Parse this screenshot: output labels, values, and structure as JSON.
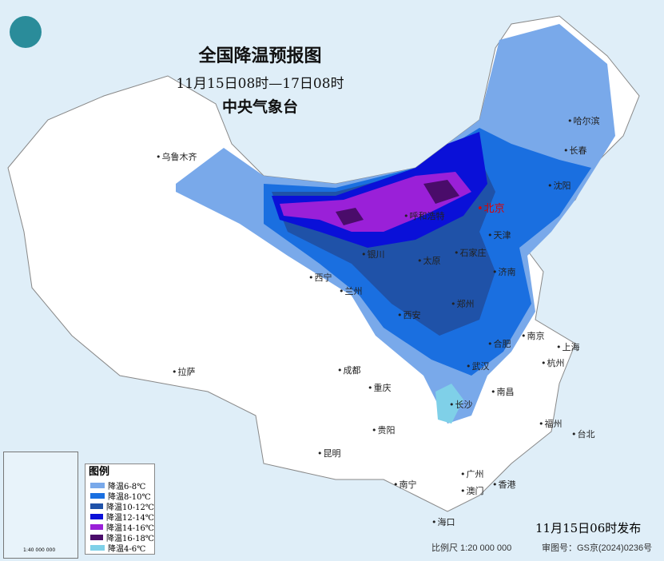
{
  "header": {
    "title": "全国降温预报图",
    "period": "11月15日08时—17日08时",
    "issuer": "中央气象台"
  },
  "legend": {
    "title": "图例",
    "items": [
      {
        "label": "降温6-8℃",
        "color": "#79a9ea"
      },
      {
        "label": "降温8-10℃",
        "color": "#1a6fe0"
      },
      {
        "label": "降温10-12℃",
        "color": "#1f52a8"
      },
      {
        "label": "降温12-14℃",
        "color": "#0a10d8"
      },
      {
        "label": "降温14-16℃",
        "color": "#9a20d8"
      },
      {
        "label": "降温16-18℃",
        "color": "#4a0c6a"
      },
      {
        "label": "降温4-6℃",
        "color": "#7fd0e8"
      }
    ]
  },
  "cities": [
    "乌鲁木齐",
    "哈尔滨",
    "长春",
    "沈阳",
    "北京",
    "天津",
    "呼和浩特",
    "银川",
    "太原",
    "石家庄",
    "济南",
    "西宁",
    "兰州",
    "西安",
    "郑州",
    "南京",
    "上海",
    "合肥",
    "杭州",
    "武汉",
    "拉萨",
    "成都",
    "重庆",
    "长沙",
    "南昌",
    "福州",
    "台北",
    "贵阳",
    "昆明",
    "南宁",
    "广州",
    "澳门",
    "香港",
    "海口"
  ],
  "footer": {
    "issued": "11月15日06时发布",
    "scale": "比例尺 1:20 000 000",
    "review": "审图号：GS京(2024)0236号",
    "inset_scale": "1:40 000 000"
  }
}
